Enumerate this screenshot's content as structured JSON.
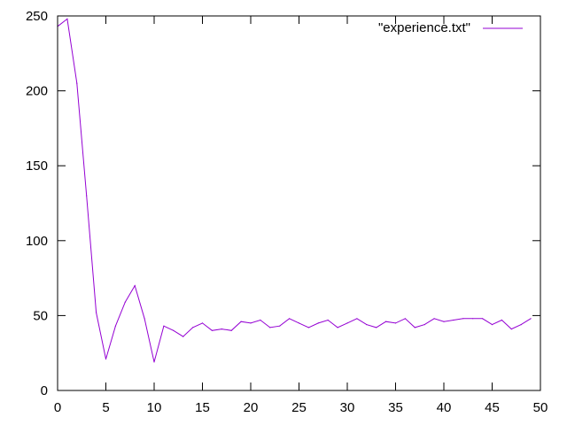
{
  "chart_data": {
    "type": "line",
    "title": "",
    "xlabel": "",
    "ylabel": "",
    "xlim": [
      0,
      50
    ],
    "ylim": [
      0,
      250
    ],
    "x_ticks": [
      0,
      5,
      10,
      15,
      20,
      25,
      30,
      35,
      40,
      45,
      50
    ],
    "y_ticks": [
      0,
      50,
      100,
      150,
      200,
      250
    ],
    "grid": false,
    "legend_position": "top-right",
    "series": [
      {
        "name": "\"experience.txt\"",
        "color": "#9400d3",
        "x": [
          0,
          1,
          2,
          3,
          4,
          5,
          6,
          7,
          8,
          9,
          10,
          11,
          12,
          13,
          14,
          15,
          16,
          17,
          18,
          19,
          20,
          21,
          22,
          23,
          24,
          25,
          26,
          27,
          28,
          29,
          30,
          31,
          32,
          33,
          34,
          35,
          36,
          37,
          38,
          39,
          40,
          41,
          42,
          43,
          44,
          45,
          46,
          47,
          48,
          49
        ],
        "y": [
          243,
          248,
          205,
          130,
          52,
          21,
          43,
          59,
          70,
          48,
          19,
          43,
          40,
          36,
          42,
          45,
          40,
          41,
          40,
          46,
          45,
          47,
          42,
          43,
          48,
          45,
          42,
          45,
          47,
          42,
          45,
          48,
          44,
          42,
          46,
          45,
          48,
          42,
          44,
          48,
          46,
          47,
          48,
          48,
          48,
          44,
          47,
          41,
          44,
          48
        ]
      }
    ]
  }
}
